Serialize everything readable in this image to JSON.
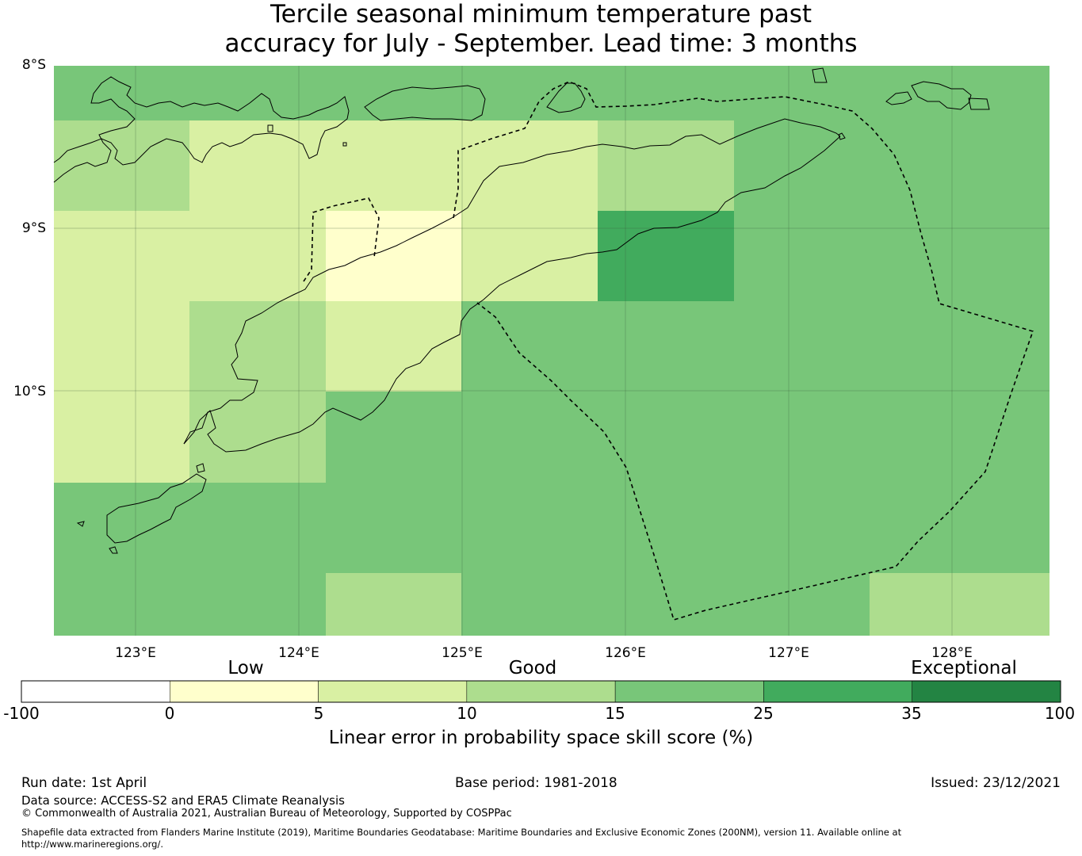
{
  "title": {
    "line1": "Tercile seasonal minimum temperature past",
    "line2": "accuracy for July - September. Lead time: 3 months"
  },
  "map": {
    "lat_labels": [
      "8°S",
      "9°S",
      "10°S"
    ],
    "lon_labels": [
      "123°E",
      "124°E",
      "125°E",
      "126°E",
      "127°E",
      "128°E"
    ],
    "lon_range": [
      122.5,
      128.6
    ],
    "lat_range": [
      -8.0,
      -11.5
    ],
    "skill_grid": {
      "lon_edges": [
        122.5,
        123.33,
        124.17,
        125.0,
        125.83,
        126.67,
        127.5,
        128.6
      ],
      "lat_edges": [
        -8.0,
        -8.33,
        -8.89,
        -9.44,
        -10.0,
        -10.56,
        -11.11,
        -11.5
      ],
      "values": [
        [
          20,
          20,
          20,
          20,
          20,
          20,
          20
        ],
        [
          12,
          8,
          8,
          8,
          12,
          20,
          20
        ],
        [
          8,
          8,
          3,
          8,
          30,
          20,
          20
        ],
        [
          8,
          12,
          8,
          20,
          20,
          20,
          20
        ],
        [
          8,
          12,
          20,
          20,
          20,
          20,
          20
        ],
        [
          20,
          20,
          20,
          20,
          20,
          20,
          20
        ],
        [
          20,
          20,
          12,
          20,
          20,
          20,
          12
        ]
      ]
    },
    "colors": {
      "low": "#ffffcc",
      "fair": "#d9f0a3",
      "good_low": "#addd8e",
      "good": "#78c679",
      "good_high": "#41ab5d",
      "exceptional": "#238443"
    }
  },
  "colorbar": {
    "category_labels": [
      "Low",
      "Good",
      "Exceptional"
    ],
    "ticks": [
      "-100",
      "0",
      "5",
      "10",
      "15",
      "25",
      "35",
      "100"
    ],
    "segment_colors": [
      "#ffffff",
      "#ffffcc",
      "#d9f0a3",
      "#addd8e",
      "#78c679",
      "#41ab5d",
      "#238443"
    ],
    "title": "Linear error in probability space skill score (%)"
  },
  "footer": {
    "run_date": "Run date: 1st April",
    "base_period": "Base period: 1981-2018",
    "issued": "Issued: 23/12/2021",
    "data_source": "Data source: ACCESS-S2 and ERA5 Climate Reanalysis",
    "copyright": "© Commonwealth of Australia 2021, Australian Bureau of Meteorology, Supported by COSPPac",
    "shapefile_line1": "Shapefile data extracted from Flanders Marine Institute (2019), Maritime Boundaries Geodatabase: Maritime Boundaries and Exclusive Economic Zones (200NM), version 11. Available online at",
    "shapefile_line2": "http://www.marineregions.org/."
  }
}
